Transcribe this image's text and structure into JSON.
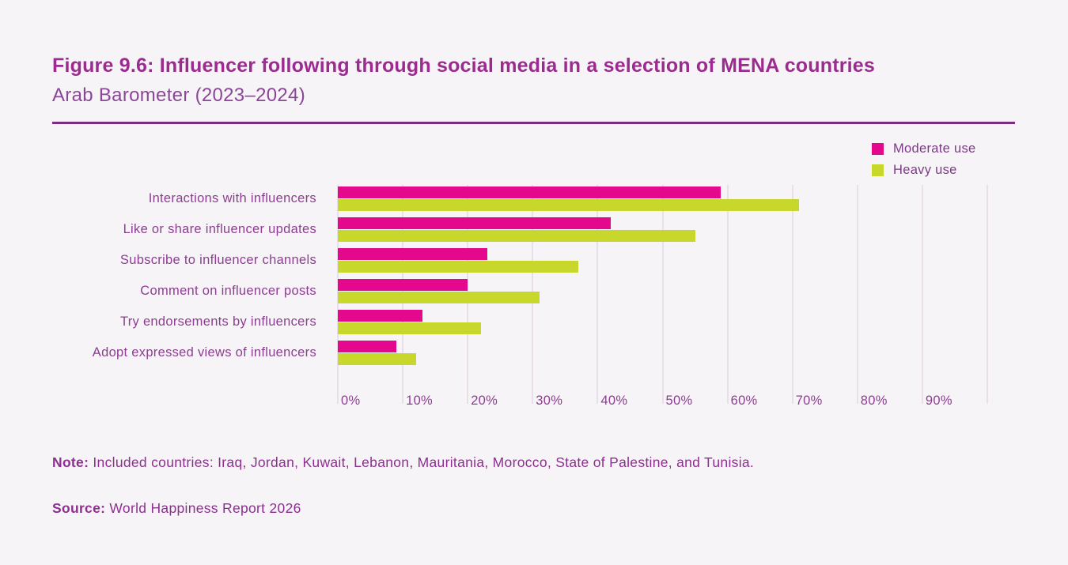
{
  "header": {
    "title": "Figure 9.6: Influencer following through social media in a selection of MENA countries",
    "subtitle": "Arab Barometer (2023–2024)"
  },
  "chart_data": {
    "type": "bar",
    "orientation": "horizontal",
    "title": "Influencer following through social media in a selection of MENA countries",
    "subtitle": "Arab Barometer (2023–2024)",
    "categories": [
      "Interactions with influencers",
      "Like or share influencer updates",
      "Subscribe to influencer channels",
      "Comment on influencer posts",
      "Try endorsements by influencers",
      "Adopt expressed views of influencers"
    ],
    "series": [
      {
        "name": "Moderate use",
        "color": "#e4098c",
        "values": [
          59,
          42,
          23,
          20,
          13,
          9
        ]
      },
      {
        "name": "Heavy use",
        "color": "#c7d72b",
        "values": [
          71,
          55,
          37,
          31,
          22,
          12
        ]
      }
    ],
    "xlim": [
      0,
      100
    ],
    "x_tick_step": 10,
    "x_tick_labels": [
      "0%",
      "10%",
      "20%",
      "30%",
      "40%",
      "50%",
      "60%",
      "70%",
      "80%",
      "90%"
    ],
    "unit": "%",
    "grid": true,
    "legend_position": "top-right"
  },
  "footer": {
    "note_label": "Note:",
    "note_text": " Included countries: Iraq, Jordan, Kuwait, Lebanon, Mauritania, Morocco, State of Palestine, and Tunisia.",
    "source_label": "Source:",
    "source_text": " World Happiness Report 2026"
  },
  "colors": {
    "moderate_use": "#e4098c",
    "heavy_use": "#c7d72b",
    "title_purple": "#9b2b8f",
    "text_purple": "#8d3d92",
    "divider_purple": "#7c2d81",
    "gridline": "#e9dfe9",
    "background": "#f7f4f7"
  }
}
